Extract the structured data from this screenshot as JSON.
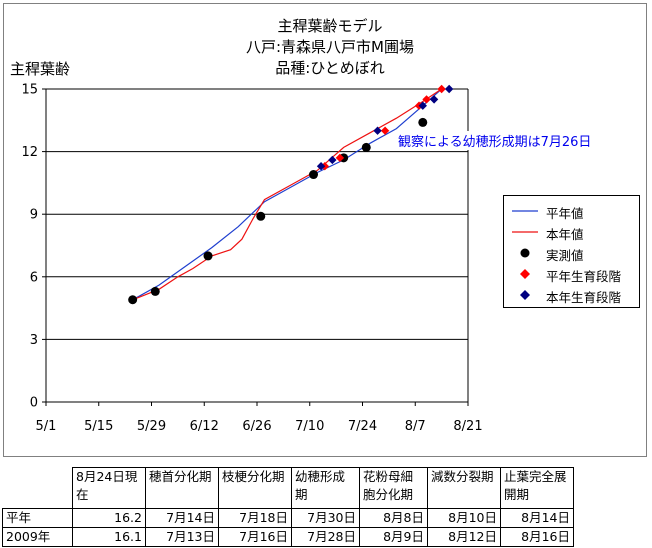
{
  "chart_data": {
    "type": "line",
    "title_lines": [
      "主稈葉齢モデル",
      "八戸:青森県八戸市M圃場",
      "品種:ひとめぼれ"
    ],
    "ylabel": "主稈葉齢",
    "xlabel": "",
    "ylim": [
      0,
      15
    ],
    "yticks": [
      "0",
      "3",
      "6",
      "9",
      "12",
      "15"
    ],
    "xticks": [
      "5/1",
      "5/15",
      "5/29",
      "6/12",
      "6/26",
      "7/10",
      "7/24",
      "8/7",
      "8/21"
    ],
    "grid": "horizontal",
    "legend_position": "right",
    "colors": {
      "heinen": "#1f3fcf",
      "honnen": "#ee1111",
      "jissoku": "#000000",
      "heinen_stage": "#ff0000",
      "honnen_stage": "#000080",
      "annotation": "#0000ee"
    },
    "annotation": "観察による幼穂形成期は7月26日",
    "series": [
      {
        "name": "平年値",
        "key": "heinen",
        "kind": "line",
        "points": [
          [
            "5/24",
            4.9
          ],
          [
            "5/31",
            5.6
          ],
          [
            "6/7",
            6.5
          ],
          [
            "6/14",
            7.4
          ],
          [
            "6/21",
            8.4
          ],
          [
            "6/28",
            9.6
          ],
          [
            "7/5",
            10.3
          ],
          [
            "7/12",
            11.0
          ],
          [
            "7/19",
            11.6
          ],
          [
            "7/26",
            12.4
          ],
          [
            "8/2",
            13.1
          ],
          [
            "8/9",
            14.2
          ],
          [
            "8/14",
            15.0
          ]
        ]
      },
      {
        "name": "本年値",
        "key": "honnen",
        "kind": "line",
        "points": [
          [
            "5/24",
            4.9
          ],
          [
            "5/31",
            5.4
          ],
          [
            "6/5",
            6.0
          ],
          [
            "6/9",
            6.4
          ],
          [
            "6/14",
            7.0
          ],
          [
            "6/19",
            7.3
          ],
          [
            "6/22",
            7.8
          ],
          [
            "6/25",
            8.8
          ],
          [
            "6/28",
            9.7
          ],
          [
            "7/5",
            10.4
          ],
          [
            "7/12",
            11.1
          ],
          [
            "7/19",
            12.2
          ],
          [
            "7/26",
            12.9
          ],
          [
            "8/2",
            13.6
          ],
          [
            "8/9",
            14.4
          ],
          [
            "8/14",
            15.0
          ]
        ]
      },
      {
        "name": "実測値",
        "key": "jissoku",
        "kind": "scatter",
        "marker": "circle",
        "points": [
          [
            "5/24",
            4.9
          ],
          [
            "5/30",
            5.3
          ],
          [
            "6/13",
            7.0
          ],
          [
            "6/27",
            8.9
          ],
          [
            "7/11",
            10.9
          ],
          [
            "7/19",
            11.7
          ],
          [
            "7/25",
            12.2
          ],
          [
            "8/9",
            13.4
          ]
        ]
      },
      {
        "name": "平年生育段階",
        "key": "heinen_stage",
        "kind": "scatter",
        "marker": "diamond",
        "points": [
          [
            "7/14",
            11.3
          ],
          [
            "7/18",
            11.7
          ],
          [
            "7/30",
            13.0
          ],
          [
            "8/8",
            14.2
          ],
          [
            "8/10",
            14.5
          ],
          [
            "8/14",
            15.0
          ]
        ]
      },
      {
        "name": "本年生育段階",
        "key": "honnen_stage",
        "kind": "scatter",
        "marker": "diamond",
        "points": [
          [
            "7/13",
            11.3
          ],
          [
            "7/16",
            11.6
          ],
          [
            "7/28",
            13.0
          ],
          [
            "8/9",
            14.2
          ],
          [
            "8/12",
            14.5
          ],
          [
            "8/16",
            15.0
          ]
        ]
      }
    ]
  },
  "table": {
    "headers": [
      "",
      "8月24日現在",
      "穂首分化期",
      "枝梗分化期",
      "幼穂形成期",
      "花粉母細胞分化期",
      "減数分裂期",
      "止葉完全展開期"
    ],
    "rows": [
      [
        "平年",
        "16.2",
        "7月14日",
        "7月18日",
        "7月30日",
        "8月8日",
        "8月10日",
        "8月14日"
      ],
      [
        "2009年",
        "16.1",
        "7月13日",
        "7月16日",
        "7月28日",
        "8月9日",
        "8月12日",
        "8月16日"
      ]
    ]
  }
}
